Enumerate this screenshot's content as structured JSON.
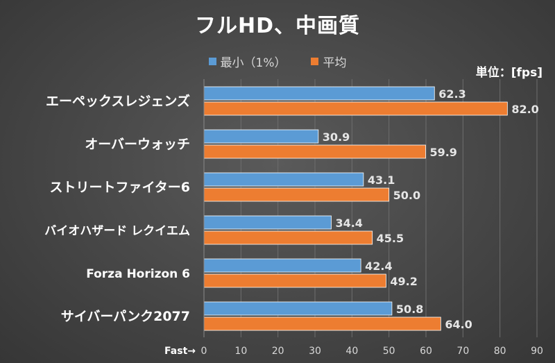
{
  "chart_data": {
    "type": "bar",
    "orientation": "horizontal",
    "title": "フルHD、中画質",
    "unit_label": "単位：[fps]",
    "axis_prefix": "Fast→",
    "categories": [
      "エーペックスレジェンズ",
      "オーバーウォッチ",
      "ストリートファイター6",
      "バイオハザード レクイエム",
      "Forza Horizon 6",
      "サイバーパンク2077"
    ],
    "series": [
      {
        "name": "最小（1%）",
        "color": "#5b9bd5",
        "values": [
          62.3,
          30.9,
          43.1,
          34.4,
          42.4,
          50.8
        ]
      },
      {
        "name": "平均",
        "color": "#ed7d31",
        "values": [
          82.0,
          59.9,
          50.0,
          45.5,
          49.2,
          64.0
        ]
      }
    ],
    "xlim": [
      0,
      90
    ],
    "xticks": [
      0,
      10,
      20,
      30,
      40,
      50,
      60,
      70,
      80,
      90
    ],
    "grid": true,
    "legend_position": "top"
  }
}
